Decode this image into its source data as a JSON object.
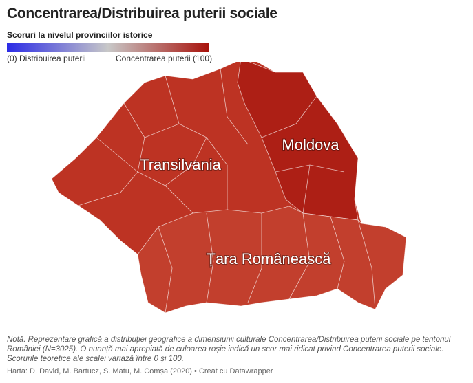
{
  "header": {
    "title": "Concentrarea/Distribuirea puterii sociale",
    "subtitle": "Scoruri la nivelul provinciilor istorice"
  },
  "legend": {
    "low_label": "(0) Distribuirea puterii",
    "high_label": "Concentrarea puterii (100)",
    "low_color": "#2b2be6",
    "mid_color": "#c8c8c8",
    "high_color": "#a8110a"
  },
  "regions": [
    {
      "label": "Transilvania",
      "color": "#bd3323"
    },
    {
      "label": "Moldova",
      "color": "#ad1f15"
    },
    {
      "label": "Țara Românească",
      "color": "#c23f2d"
    }
  ],
  "footer": {
    "note": "Notă. Reprezentare grafică a distribuției geografice a dimensiunii culturale Concentrarea/Distribuirea puterii sociale pe teritoriul României (N=3025). O nuanță mai apropiată de culoarea roșie indică un scor mai ridicat privind Concentrarea puterii sociale. Scorurile teoretice ale scalei variază între 0 și 100.",
    "source": "Harta: D. David, M. Bartucz, S. Matu, M. Comșa (2020) • Creat cu Datawrapper"
  }
}
